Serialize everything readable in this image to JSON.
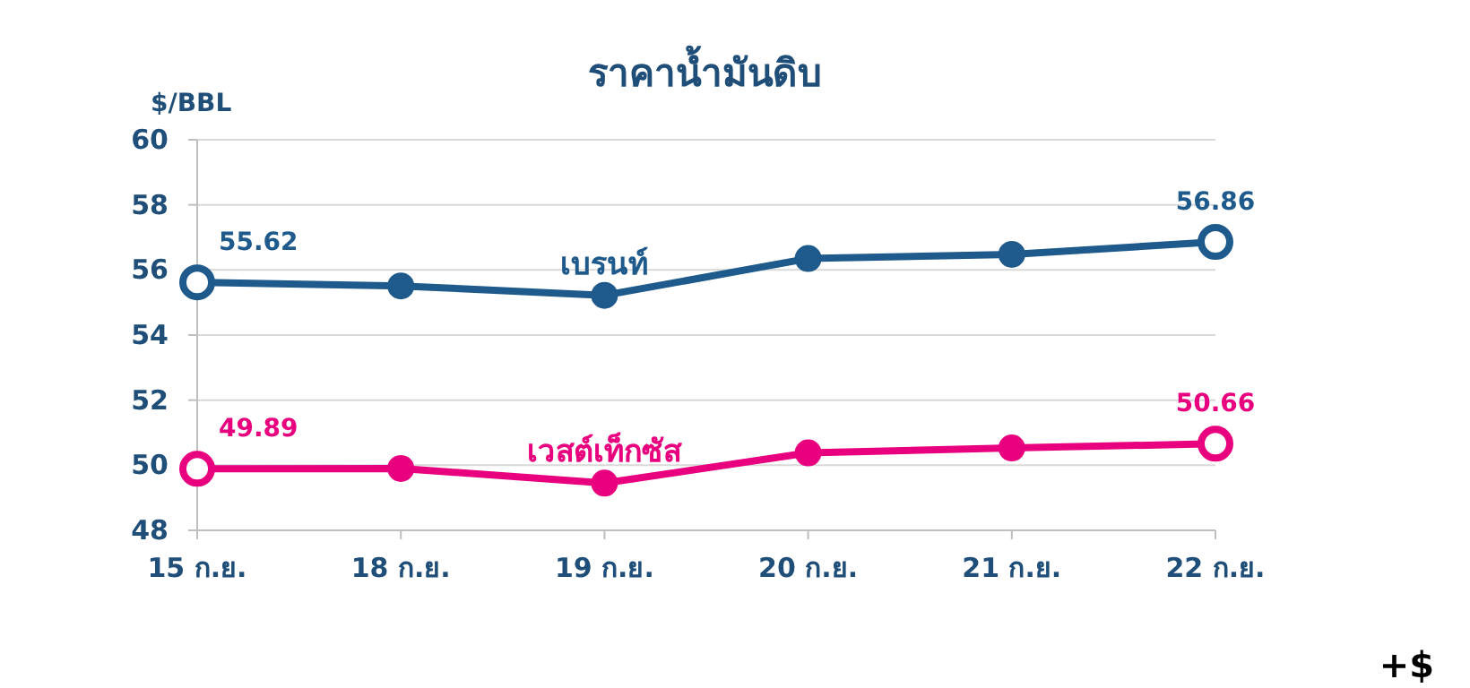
{
  "chart_data": {
    "type": "line",
    "title": "ราคาน้ำมันดิบ",
    "ylabel": "$/BBL",
    "categories": [
      "15 ก.ย.",
      "18 ก.ย.",
      "19 ก.ย.",
      "20 ก.ย.",
      "21 ก.ย.",
      "22 ก.ย."
    ],
    "series": [
      {
        "name": "เบรนท์",
        "color": "#1f5a8c",
        "values": [
          55.62,
          55.51,
          55.22,
          56.35,
          56.48,
          56.86
        ],
        "value_labels": [
          "55.62",
          null,
          null,
          null,
          null,
          "56.86"
        ]
      },
      {
        "name": "เวสต์เท็กซัส",
        "color": "#e8007f",
        "values": [
          49.89,
          49.9,
          49.45,
          50.38,
          50.53,
          50.66
        ],
        "value_labels": [
          "49.89",
          null,
          null,
          null,
          null,
          "50.66"
        ]
      }
    ],
    "ylim": [
      48,
      60
    ],
    "yticks": [
      48,
      50,
      52,
      54,
      56,
      58,
      60
    ],
    "grid": "y",
    "marker": "circle",
    "annotations": [
      "+$"
    ]
  }
}
